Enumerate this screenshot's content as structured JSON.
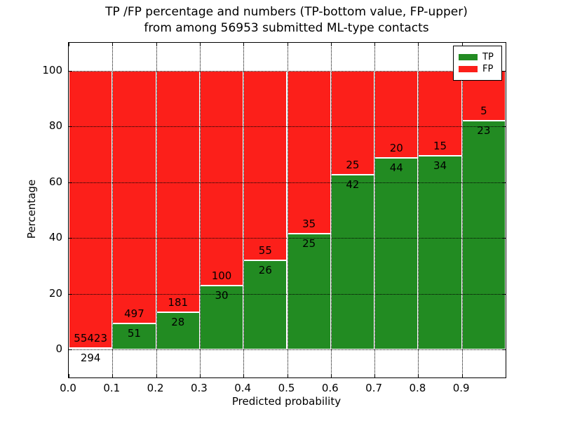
{
  "figure": {
    "title_line1": "TP /FP percentage and numbers (TP-bottom value, FP-upper)",
    "title_line2": "from among 56953 submitted ML-type contacts"
  },
  "chart_data": {
    "type": "bar",
    "stacked": true,
    "normalized_to_percent": true,
    "title": "TP /FP percentage and numbers (TP-bottom value, FP-upper) from among 56953 submitted ML-type contacts",
    "total_submitted_contacts": 56953,
    "xlabel": "Predicted probability",
    "ylabel": "Percentage",
    "bins": [
      "0.0-0.1",
      "0.1-0.2",
      "0.2-0.3",
      "0.3-0.4",
      "0.4-0.5",
      "0.5-0.6",
      "0.6-0.7",
      "0.7-0.8",
      "0.8-0.9",
      "0.9-1.0"
    ],
    "bin_starts": [
      0.0,
      0.1,
      0.2,
      0.3,
      0.4,
      0.5,
      0.6,
      0.7,
      0.8,
      0.9
    ],
    "bin_width": 0.1,
    "series": [
      {
        "name": "TP",
        "color": "#228b22",
        "counts": [
          294,
          51,
          28,
          30,
          26,
          25,
          42,
          44,
          34,
          23
        ]
      },
      {
        "name": "FP",
        "color": "#fc1f1a",
        "counts": [
          55423,
          497,
          181,
          100,
          55,
          35,
          25,
          20,
          15,
          5
        ]
      }
    ],
    "tp_percent_heights": [
      0.53,
      9.31,
      13.4,
      23.08,
      32.1,
      41.67,
      62.69,
      68.75,
      69.39,
      82.14
    ],
    "xticks": [
      "0.0",
      "0.1",
      "0.2",
      "0.3",
      "0.4",
      "0.5",
      "0.6",
      "0.7",
      "0.8",
      "0.9"
    ],
    "yticks": [
      0,
      20,
      40,
      60,
      80,
      100
    ],
    "xlim": [
      0.0,
      1.0
    ],
    "ylim": [
      -10,
      110
    ],
    "grid": true,
    "grid_style": "dotted",
    "legend": {
      "position": "upper right",
      "entries": [
        {
          "label": "TP",
          "color": "#228b22"
        },
        {
          "label": "FP",
          "color": "#fc1f1a"
        }
      ]
    }
  }
}
